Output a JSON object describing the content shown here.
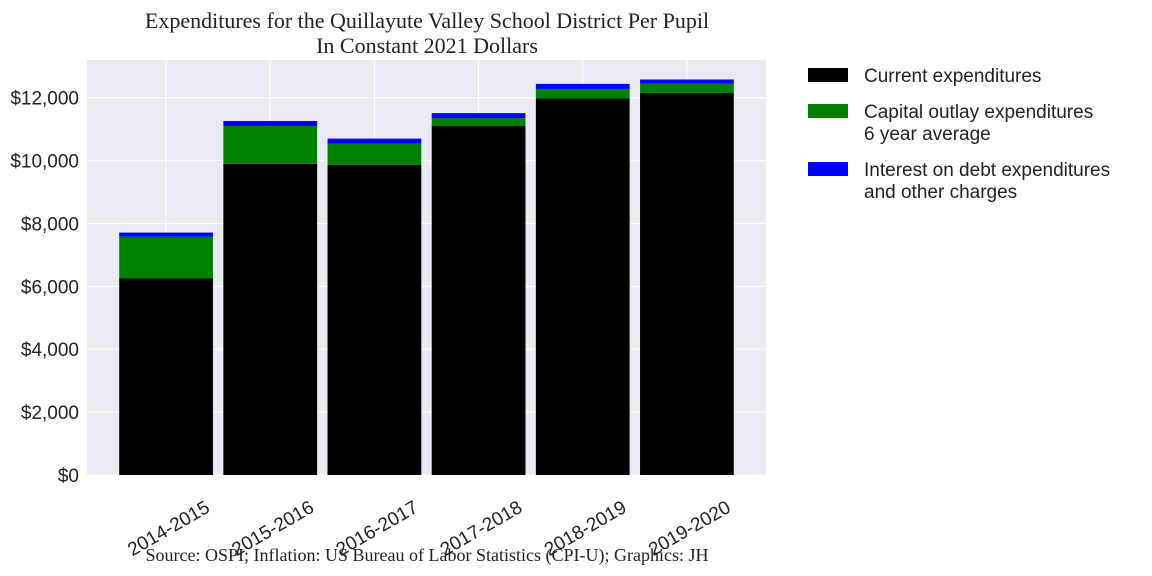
{
  "chart_data": {
    "type": "bar",
    "stacked": true,
    "title": "Expenditures for the Quillayute Valley School District Per Pupil",
    "subtitle": "In Constant 2021 Dollars",
    "source": "Source: OSPI; Inflation: US Bureau of Labor Statistics (CPI-U); Graphics: JH",
    "xlabel": "",
    "ylabel": "",
    "ylim": [
      0,
      13200
    ],
    "yticks": [
      0,
      2000,
      4000,
      6000,
      8000,
      10000,
      12000
    ],
    "ytick_labels": [
      "$0",
      "$2,000",
      "$4,000",
      "$6,000",
      "$8,000",
      "$10,000",
      "$12,000"
    ],
    "categories": [
      "2014-2015",
      "2015-2016",
      "2016-2017",
      "2017-2018",
      "2018-2019",
      "2019-2020"
    ],
    "grid": true,
    "legend_position": "right",
    "series": [
      {
        "name": "Current expenditures",
        "legend_lines": [
          "Current expenditures"
        ],
        "color": "#000000",
        "values": [
          6250,
          9900,
          9870,
          11100,
          11980,
          12150
        ]
      },
      {
        "name": "Capital outlay expenditures 6 year average",
        "legend_lines": [
          "Capital outlay expenditures",
          "6 year average"
        ],
        "color": "#008000",
        "values": [
          1330,
          1200,
          670,
          250,
          300,
          300
        ]
      },
      {
        "name": "Interest on debt expenditures and other charges",
        "legend_lines": [
          "Interest on debt expenditures",
          "and other charges"
        ],
        "color": "#0000ff",
        "values": [
          130,
          160,
          160,
          160,
          160,
          130
        ]
      }
    ]
  }
}
